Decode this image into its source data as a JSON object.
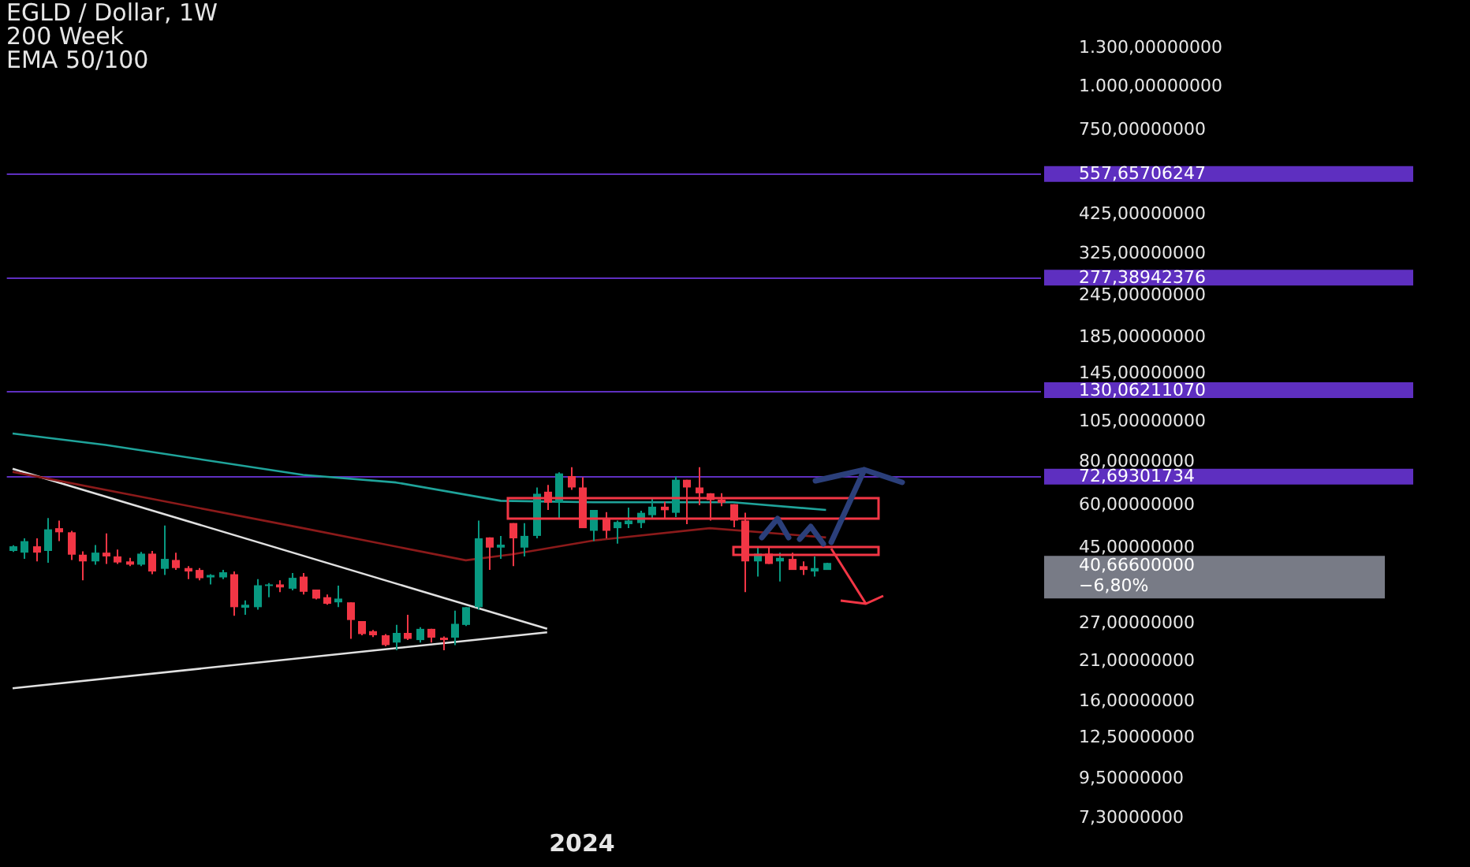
{
  "chart_data": {
    "type": "candlestick",
    "title": "EGLD / Dollar, 1W",
    "subtitle": "200 Week",
    "categories": [
      null,
      null,
      null,
      null,
      null,
      null,
      null,
      null,
      null,
      null,
      null,
      null,
      null,
      null,
      null,
      null,
      null,
      null,
      null,
      null,
      null,
      null,
      null,
      null,
      null,
      null,
      null,
      null,
      null,
      null,
      null,
      null,
      null,
      null,
      null,
      null,
      null,
      null,
      null,
      null,
      null,
      null,
      null,
      null,
      null,
      null,
      null,
      null,
      null,
      "2024",
      null,
      null,
      null,
      null,
      null,
      null,
      null,
      null,
      null,
      null,
      null,
      null,
      null,
      null,
      null,
      null,
      null,
      null,
      null,
      null,
      null,
      null,
      null,
      null,
      null,
      null,
      null,
      null,
      null,
      null,
      null,
      null,
      null,
      null,
      null,
      null,
      null,
      null,
      null
    ],
    "ohlc": [
      [
        44.1,
        45.8,
        43.8,
        45.5
      ],
      [
        43.6,
        48.0,
        41.8,
        47.1
      ],
      [
        45.5,
        48.0,
        41.1,
        43.6
      ],
      [
        44.1,
        55.0,
        40.7,
        51.0
      ],
      [
        51.4,
        54.1,
        47.1,
        50.0
      ],
      [
        50.0,
        50.5,
        41.5,
        43.0
      ],
      [
        43.0,
        44.0,
        36.2,
        41.1
      ],
      [
        41.1,
        45.9,
        40.2,
        43.6
      ],
      [
        43.6,
        49.6,
        40.4,
        42.5
      ],
      [
        42.5,
        44.5,
        40.4,
        40.8
      ],
      [
        41.1,
        42.1,
        39.8,
        40.2
      ],
      [
        40.2,
        43.8,
        39.8,
        43.3
      ],
      [
        43.3,
        44.1,
        37.7,
        38.4
      ],
      [
        39.1,
        52.3,
        37.5,
        41.8
      ],
      [
        41.5,
        43.6,
        38.8,
        39.3
      ],
      [
        39.3,
        39.8,
        36.5,
        38.4
      ],
      [
        38.8,
        39.3,
        36.2,
        36.7
      ],
      [
        36.9,
        37.7,
        35.2,
        37.5
      ],
      [
        36.9,
        38.8,
        36.5,
        38.2
      ],
      [
        37.7,
        38.4,
        28.5,
        30.2
      ],
      [
        30.1,
        31.6,
        28.7,
        30.7
      ],
      [
        30.2,
        36.5,
        29.7,
        35.0
      ],
      [
        34.9,
        35.5,
        32.3,
        35.2
      ],
      [
        35.2,
        36.2,
        33.4,
        34.5
      ],
      [
        34.2,
        38.0,
        33.8,
        36.8
      ],
      [
        37.1,
        38.0,
        32.9,
        33.5
      ],
      [
        34.0,
        34.0,
        31.8,
        32.0
      ],
      [
        32.3,
        32.9,
        30.7,
        30.9
      ],
      [
        31.2,
        34.9,
        30.2,
        32.0
      ],
      [
        31.2,
        31.2,
        24.4,
        27.7
      ],
      [
        27.5,
        27.5,
        25.0,
        25.2
      ],
      [
        25.7,
        25.9,
        24.7,
        25.0
      ],
      [
        25.0,
        25.2,
        23.2,
        23.4
      ],
      [
        23.8,
        26.8,
        22.6,
        25.4
      ],
      [
        25.4,
        28.7,
        24.2,
        24.4
      ],
      [
        24.2,
        26.4,
        23.8,
        26.1
      ],
      [
        26.1,
        26.1,
        23.8,
        24.6
      ],
      [
        24.6,
        24.8,
        22.6,
        24.2
      ],
      [
        24.6,
        29.5,
        23.4,
        27.0
      ],
      [
        26.8,
        30.2,
        26.6,
        30.2
      ],
      [
        30.2,
        54.1,
        29.7,
        48.0
      ],
      [
        48.3,
        48.3,
        38.8,
        45.1
      ],
      [
        45.1,
        48.8,
        41.8,
        46.0
      ],
      [
        53.2,
        53.2,
        39.8,
        48.0
      ],
      [
        45.1,
        53.2,
        42.5,
        48.8
      ],
      [
        48.8,
        67.6,
        48.0,
        64.8
      ],
      [
        65.7,
        68.8,
        58.1,
        61.0
      ],
      [
        61.0,
        74.9,
        54.6,
        74.3
      ],
      [
        73.0,
        77.5,
        66.5,
        67.6
      ],
      [
        67.6,
        72.4,
        51.4,
        51.4
      ],
      [
        50.5,
        58.1,
        47.1,
        58.1
      ],
      [
        55.0,
        57.3,
        48.0,
        50.5
      ],
      [
        51.4,
        54.1,
        46.3,
        53.6
      ],
      [
        52.8,
        59.0,
        51.4,
        54.1
      ],
      [
        53.2,
        57.8,
        51.4,
        57.0
      ],
      [
        56.1,
        62.7,
        55.0,
        59.4
      ],
      [
        59.4,
        61.4,
        55.0,
        58.0
      ],
      [
        57.0,
        72.8,
        55.4,
        71.2
      ],
      [
        71.2,
        71.2,
        52.8,
        67.6
      ],
      [
        67.6,
        77.5,
        60.0,
        65.0
      ],
      [
        65.0,
        65.0,
        54.1,
        62.1
      ],
      [
        62.3,
        65.0,
        59.6,
        61.0
      ],
      [
        60.4,
        60.4,
        51.7,
        54.1
      ],
      [
        54.1,
        57.0,
        33.4,
        41.1
      ],
      [
        41.1,
        45.5,
        37.1,
        43.3
      ],
      [
        43.3,
        45.5,
        40.4,
        40.4
      ],
      [
        41.1,
        43.6,
        35.9,
        42.1
      ],
      [
        41.8,
        43.6,
        38.8,
        38.8
      ],
      [
        39.8,
        41.1,
        37.5,
        38.8
      ],
      [
        38.4,
        42.5,
        37.1,
        39.3
      ],
      [
        38.8,
        40.7,
        38.8,
        40.67
      ],
      null,
      null,
      null,
      null,
      null,
      null,
      null,
      null,
      null,
      null,
      null,
      null,
      null,
      null,
      null,
      null,
      null,
      null
    ],
    "colors": [
      "#089981",
      "#089981",
      "#f23645",
      "#089981",
      "#f23645",
      "#f23645",
      "#f23645",
      "#089981",
      "#f23645",
      "#f23645",
      "#f23645",
      "#089981",
      "#f23645",
      "#089981",
      "#f23645",
      "#f23645",
      "#f23645",
      "#089981",
      "#089981",
      "#f23645",
      "#089981",
      "#089981",
      "#089981",
      "#f23645",
      "#089981",
      "#f23645",
      "#f23645",
      "#f23645",
      "#089981",
      "#f23645",
      "#f23645",
      "#f23645",
      "#f23645",
      "#089981",
      "#f23645",
      "#089981",
      "#f23645",
      "#f23645",
      "#089981",
      "#089981",
      "#089981",
      "#f23645",
      "#089981",
      "#f23645",
      "#089981",
      "#089981",
      "#f23645",
      "#089981",
      "#f23645",
      "#f23645",
      "#089981",
      "#f23645",
      "#089981",
      "#089981",
      "#089981",
      "#089981",
      "#f23645",
      "#089981",
      "#f23645",
      "#f23645",
      "#f23645",
      "#f23645",
      "#f23645",
      "#f23645",
      "#089981",
      "#f23645",
      "#089981",
      "#f23645",
      "#f23645",
      "#089981",
      "#089981",
      null,
      null,
      null,
      null,
      null,
      null,
      null,
      null,
      null,
      null,
      null,
      null,
      null,
      null,
      null,
      null,
      null,
      null
    ],
    "series": [
      {
        "type": "line",
        "color": "#1fa39a",
        "values": [
          97.2,
          null,
          null,
          null,
          null,
          null,
          null,
          null,
          90.0,
          null,
          null,
          null,
          null,
          null,
          null,
          null,
          null,
          null,
          null,
          null,
          null,
          null,
          null,
          null,
          null,
          73.6,
          null,
          null,
          null,
          null,
          null,
          null,
          null,
          69.9,
          null,
          null,
          null,
          null,
          null,
          null,
          null,
          null,
          61.8,
          null,
          null,
          null,
          null,
          null,
          null,
          null,
          61.2,
          null,
          null,
          null,
          null,
          null,
          null,
          null,
          null,
          null,
          null,
          null,
          61.2,
          null,
          null,
          null,
          null,
          null,
          null,
          null,
          58.1,
          null,
          null,
          null,
          null,
          null,
          null,
          null,
          null,
          null,
          null,
          null,
          null,
          null,
          null,
          null,
          null,
          null,
          null
        ]
      },
      {
        "type": "line",
        "color": "#8b1a1a",
        "values": [
          75.1,
          null,
          null,
          null,
          null,
          null,
          null,
          null,
          null,
          null,
          null,
          null,
          null,
          null,
          null,
          null,
          null,
          null,
          null,
          null,
          null,
          null,
          null,
          null,
          null,
          51.4,
          null,
          null,
          null,
          null,
          null,
          null,
          null,
          null,
          null,
          null,
          null,
          null,
          null,
          41.4,
          null,
          null,
          null,
          43.1,
          null,
          null,
          null,
          null,
          null,
          null,
          47.3,
          null,
          null,
          null,
          null,
          null,
          null,
          null,
          null,
          null,
          51.4,
          null,
          null,
          null,
          null,
          null,
          null,
          null,
          null,
          null,
          48.3,
          null,
          null,
          null,
          null,
          null,
          null,
          null,
          null,
          null,
          null,
          null,
          null,
          null,
          null,
          null,
          null,
          null,
          null
        ]
      },
      {
        "type": "line",
        "color": "#e0e0e0",
        "values": [
          76.7,
          null,
          null,
          null,
          null,
          null,
          null,
          null,
          null,
          null,
          null,
          null,
          null,
          null,
          null,
          null,
          null,
          null,
          null,
          null,
          null,
          null,
          null,
          null,
          null,
          null,
          null,
          null,
          null,
          null,
          null,
          null,
          null,
          null,
          null,
          null,
          null,
          null,
          null,
          null,
          null,
          null,
          null,
          null,
          null,
          null,
          26.1,
          null,
          null,
          null,
          null,
          null,
          null,
          null,
          null,
          null,
          null,
          null,
          null,
          null,
          null,
          null,
          null,
          null,
          null,
          null,
          null,
          null,
          null,
          null,
          null,
          null,
          null,
          null,
          null,
          null,
          null,
          null,
          null,
          null,
          null,
          null,
          null,
          null,
          null,
          null,
          null,
          null,
          null
        ]
      },
      {
        "type": "line",
        "color": "#e0e0e0",
        "values": [
          17.5,
          null,
          null,
          null,
          null,
          null,
          null,
          null,
          null,
          null,
          null,
          null,
          null,
          null,
          null,
          null,
          null,
          null,
          null,
          null,
          null,
          null,
          null,
          null,
          null,
          null,
          null,
          null,
          null,
          null,
          null,
          null,
          null,
          null,
          null,
          null,
          null,
          null,
          null,
          null,
          null,
          null,
          null,
          null,
          null,
          null,
          25.5,
          null,
          null,
          null,
          null,
          null,
          null,
          null,
          null,
          null,
          null,
          null,
          null,
          null,
          null,
          null,
          null,
          null,
          null,
          null,
          null,
          null,
          null,
          null,
          null,
          null,
          null,
          null,
          null,
          null,
          null,
          null,
          null,
          null,
          null,
          null,
          null,
          null,
          null,
          null,
          null,
          null,
          null
        ]
      }
    ],
    "log": true,
    "ylim": [
      7.3,
      1300
    ],
    "yticks": [
      {
        "value": 1300,
        "label": "1.300,00000000"
      },
      {
        "value": 1000,
        "label": "1.000,00000000"
      },
      {
        "value": 750,
        "label": "750,00000000"
      },
      {
        "value": 425,
        "label": "425,00000000"
      },
      {
        "value": 325,
        "label": "325,00000000"
      },
      {
        "value": 245,
        "label": "245,00000000"
      },
      {
        "value": 185,
        "label": "185,00000000"
      },
      {
        "value": 145,
        "label": "145,00000000"
      },
      {
        "value": 105,
        "label": "105,00000000"
      },
      {
        "value": 80,
        "label": "80,00000000"
      },
      {
        "value": 60,
        "label": "60,00000000"
      },
      {
        "value": 45,
        "label": "45,00000000"
      },
      {
        "value": 27,
        "label": "27,00000000"
      },
      {
        "value": 21,
        "label": "21,00000000"
      },
      {
        "value": 16,
        "label": "16,00000000"
      },
      {
        "value": 12.5,
        "label": "12,50000000"
      },
      {
        "value": 9.5,
        "label": "9,50000000"
      },
      {
        "value": 7.3,
        "label": "7,30000000"
      }
    ],
    "ref_lines": [
      {
        "axis": "y",
        "value": 557.65706247,
        "label": "557,65706247",
        "color": "#5e2fc0"
      },
      {
        "axis": "y",
        "value": 277.38942376,
        "label": "277,38942376",
        "color": "#5e2fc0"
      },
      {
        "axis": "y",
        "value": 130.0621107,
        "label": "130,06211070",
        "color": "#5e2fc0"
      },
      {
        "axis": "y",
        "value": 72.69301734,
        "label": "72,69301734",
        "color": "#5e2fc0"
      }
    ],
    "annotations": [
      "EMA 50/100",
      "40,66600000",
      "−6,80%"
    ],
    "grid": false,
    "legend": false
  }
}
